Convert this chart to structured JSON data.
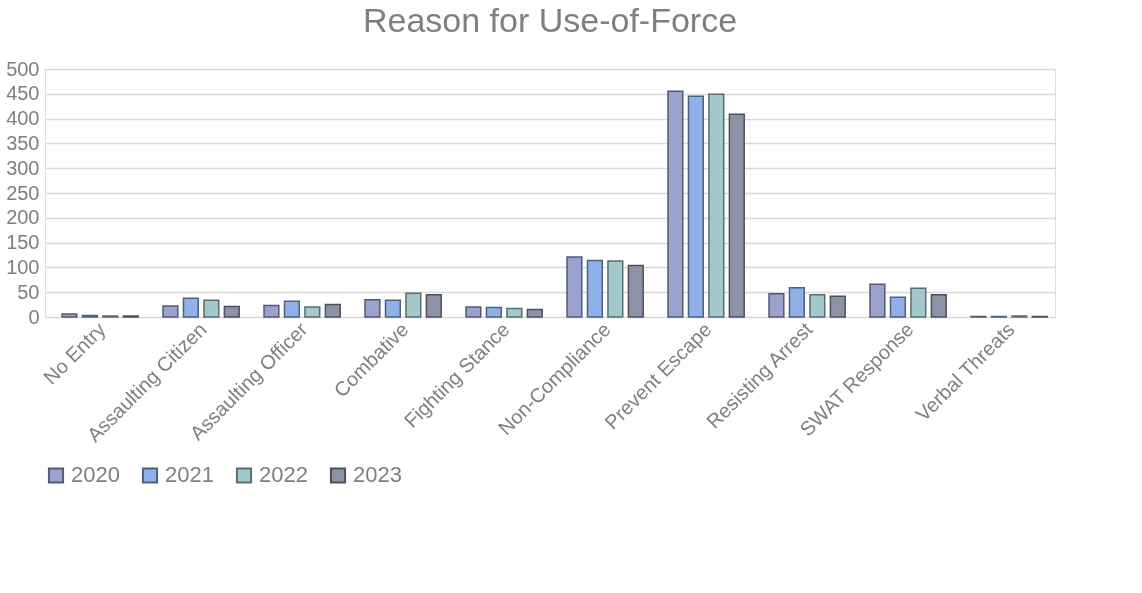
{
  "chart_data": {
    "type": "bar",
    "title": "Reason for Use-of-Force",
    "categories": [
      "No Entry",
      "Assaulting Citizen",
      "Assaulting Officer",
      "Combative",
      "Fighting Stance",
      "Non-Compliance",
      "Prevent Escape",
      "Resisting Arrest",
      "SWAT Response",
      "Verbal Threats"
    ],
    "series": [
      {
        "name": "2020",
        "color": "#9aa3cf",
        "values": [
          6,
          22,
          23,
          35,
          20,
          121,
          455,
          47,
          66,
          1
        ]
      },
      {
        "name": "2021",
        "color": "#8fb0e8",
        "values": [
          3,
          38,
          32,
          34,
          19,
          114,
          445,
          59,
          40,
          1
        ]
      },
      {
        "name": "2022",
        "color": "#a3c8cc",
        "values": [
          2,
          34,
          20,
          48,
          17,
          113,
          449,
          45,
          58,
          2
        ]
      },
      {
        "name": "2023",
        "color": "#8d93a6",
        "values": [
          2,
          21,
          25,
          45,
          15,
          104,
          409,
          42,
          45,
          1
        ]
      }
    ],
    "ylim": [
      0,
      500
    ],
    "yticks": [
      0,
      50,
      100,
      150,
      200,
      250,
      300,
      350,
      400,
      450,
      500
    ],
    "grid": "y",
    "legend": "bottom"
  }
}
